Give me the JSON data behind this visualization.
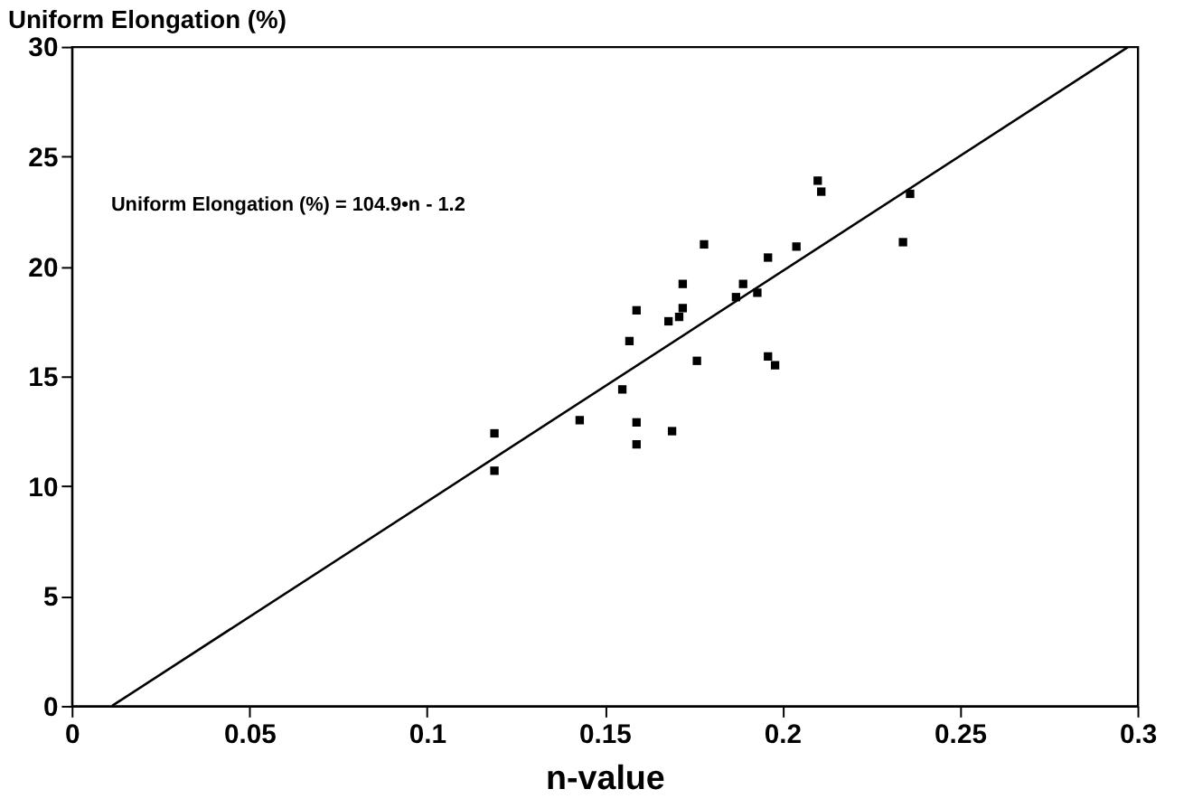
{
  "chart_data": {
    "type": "scatter",
    "xlabel": "n-value",
    "ylabel": "Uniform Elongation (%)",
    "xlim": [
      0,
      0.3
    ],
    "xticks": [
      0,
      0.05,
      0.1,
      0.15,
      0.2,
      0.25,
      0.3
    ],
    "ylim": [
      0,
      30
    ],
    "yticks": [
      0,
      5,
      10,
      15,
      20,
      25,
      30
    ],
    "grid": false,
    "annotations": [
      "Uniform Elongation (%) = 104.9•n - 1.2"
    ],
    "series": [
      {
        "color": "#000000",
        "marker": "square",
        "x": [
          0.119,
          0.119,
          0.143,
          0.155,
          0.157,
          0.159,
          0.159,
          0.159,
          0.169,
          0.168,
          0.171,
          0.172,
          0.172,
          0.176,
          0.178,
          0.187,
          0.189,
          0.193,
          0.196,
          0.196,
          0.198,
          0.204,
          0.21,
          0.211,
          0.234,
          0.236
        ],
        "values": [
          12.4,
          10.7,
          13.0,
          14.4,
          16.6,
          18.0,
          12.9,
          11.9,
          12.5,
          17.5,
          17.7,
          18.1,
          19.2,
          15.7,
          21.0,
          18.6,
          19.2,
          18.8,
          20.4,
          15.9,
          15.5,
          20.9,
          23.9,
          23.4,
          21.1,
          23.3
        ]
      },
      {
        "type": "line",
        "marker": "none",
        "color": "#000000",
        "x": [
          0.0114,
          0.2975
        ],
        "values": [
          0,
          30
        ]
      }
    ]
  }
}
